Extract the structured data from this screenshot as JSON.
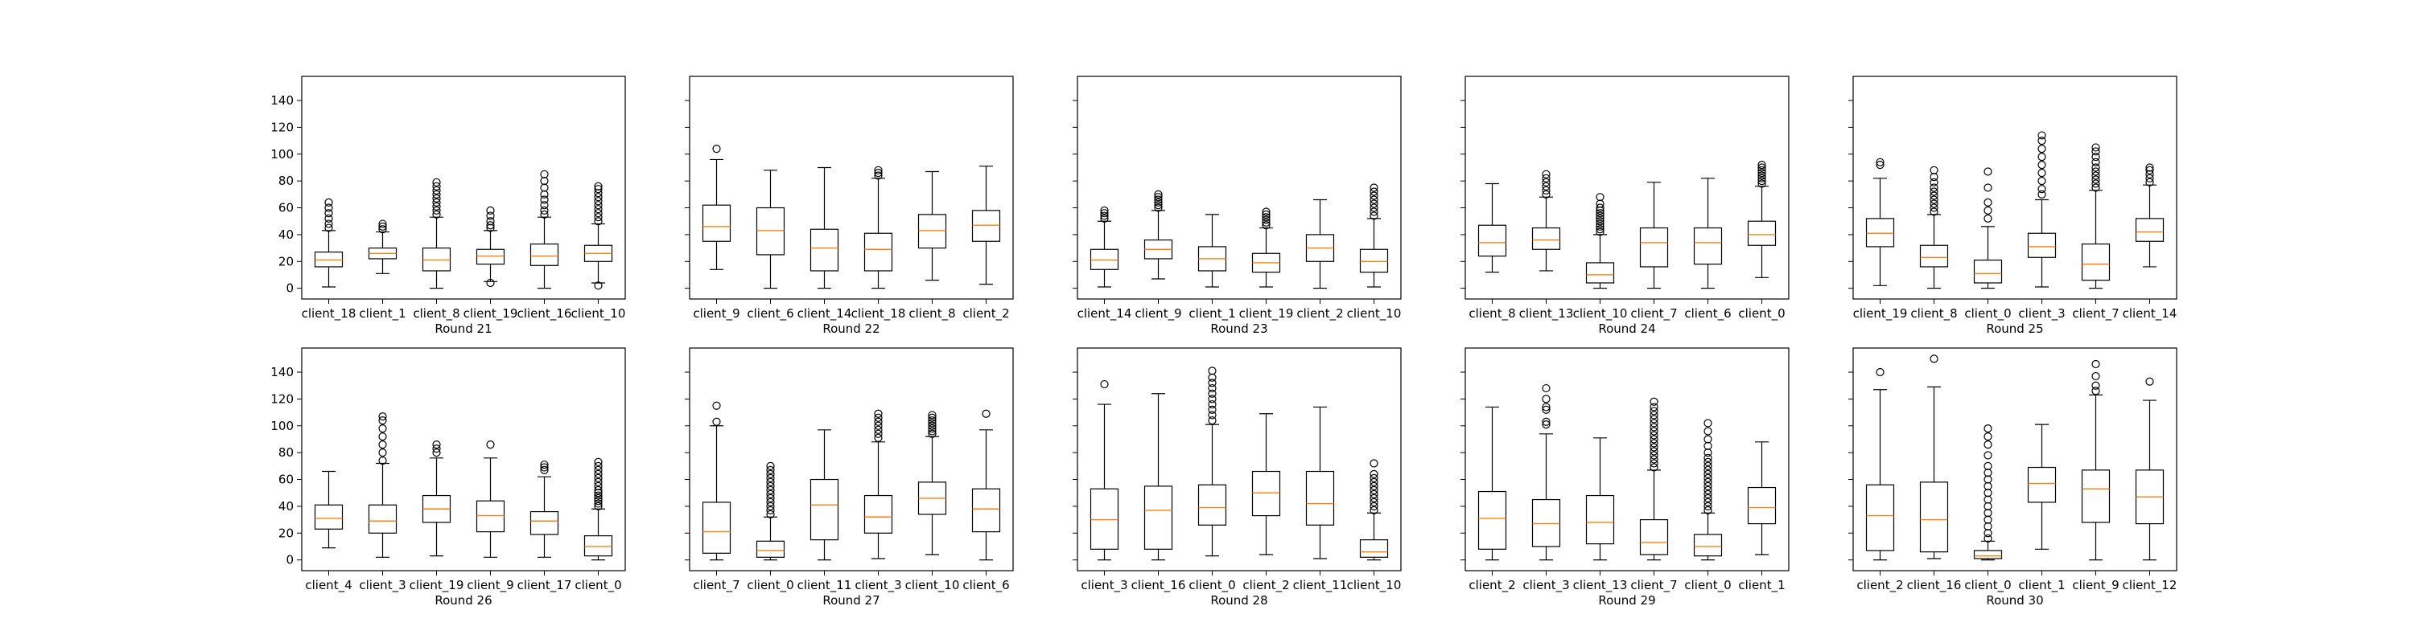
{
  "chart_data": {
    "type": "box",
    "ylim": [
      -8,
      158
    ],
    "yticks": [
      0,
      20,
      40,
      60,
      80,
      100,
      120,
      140
    ],
    "grid": false,
    "panels": [
      {
        "title": "Round 21",
        "clients": [
          {
            "name": "client_18",
            "whislo": 1,
            "q1": 16,
            "med": 21,
            "q3": 27,
            "whishi": 43,
            "fliers": [
              45,
              48,
              52,
              56,
              60,
              64
            ]
          },
          {
            "name": "client_1",
            "whislo": 11,
            "q1": 22,
            "med": 26,
            "q3": 30,
            "whishi": 42,
            "fliers": [
              44,
              46,
              48
            ]
          },
          {
            "name": "client_8",
            "whislo": 0,
            "q1": 13,
            "med": 21,
            "q3": 30,
            "whishi": 53,
            "fliers": [
              55,
              58,
              61,
              64,
              67,
              70,
              73,
              76,
              79
            ]
          },
          {
            "name": "client_19",
            "whislo": 5,
            "q1": 18,
            "med": 24,
            "q3": 29,
            "whishi": 43,
            "fliers": [
              45,
              47,
              50,
              54,
              58,
              4
            ]
          },
          {
            "name": "client_16",
            "whislo": 0,
            "q1": 17,
            "med": 24,
            "q3": 33,
            "whishi": 53,
            "fliers": [
              55,
              58,
              62,
              66,
              70,
              75,
              80,
              85
            ]
          },
          {
            "name": "client_10",
            "whislo": 4,
            "q1": 20,
            "med": 26,
            "q3": 32,
            "whishi": 48,
            "fliers": [
              50,
              53,
              56,
              59,
              62,
              65,
              68,
              71,
              74,
              76,
              2
            ]
          }
        ]
      },
      {
        "title": "Round 22",
        "clients": [
          {
            "name": "client_9",
            "whislo": 14,
            "q1": 35,
            "med": 46,
            "q3": 62,
            "whishi": 96,
            "fliers": [
              104
            ]
          },
          {
            "name": "client_6",
            "whislo": 0,
            "q1": 25,
            "med": 43,
            "q3": 60,
            "whishi": 88,
            "fliers": []
          },
          {
            "name": "client_14",
            "whislo": 0,
            "q1": 13,
            "med": 30,
            "q3": 44,
            "whishi": 90,
            "fliers": []
          },
          {
            "name": "client_18",
            "whislo": 0,
            "q1": 13,
            "med": 29,
            "q3": 41,
            "whishi": 82,
            "fliers": [
              84,
              86,
              88
            ]
          },
          {
            "name": "client_8",
            "whislo": 6,
            "q1": 30,
            "med": 43,
            "q3": 55,
            "whishi": 87,
            "fliers": []
          },
          {
            "name": "client_2",
            "whislo": 3,
            "q1": 35,
            "med": 47,
            "q3": 58,
            "whishi": 91,
            "fliers": []
          }
        ]
      },
      {
        "title": "Round 23",
        "clients": [
          {
            "name": "client_14",
            "whislo": 1,
            "q1": 14,
            "med": 21,
            "q3": 29,
            "whishi": 50,
            "fliers": [
              52,
              54,
              56,
              58
            ]
          },
          {
            "name": "client_9",
            "whislo": 7,
            "q1": 22,
            "med": 29,
            "q3": 36,
            "whishi": 58,
            "fliers": [
              60,
              62,
              64,
              66,
              68,
              70
            ]
          },
          {
            "name": "client_1",
            "whislo": 1,
            "q1": 13,
            "med": 22,
            "q3": 31,
            "whishi": 55,
            "fliers": []
          },
          {
            "name": "client_19",
            "whislo": 1,
            "q1": 12,
            "med": 19,
            "q3": 26,
            "whishi": 45,
            "fliers": [
              47,
              49,
              51,
              53,
              55,
              57
            ]
          },
          {
            "name": "client_2",
            "whislo": 0,
            "q1": 20,
            "med": 30,
            "q3": 40,
            "whishi": 66,
            "fliers": []
          },
          {
            "name": "client_10",
            "whislo": 1,
            "q1": 12,
            "med": 20,
            "q3": 29,
            "whishi": 52,
            "fliers": [
              54,
              57,
              60,
              63,
              66,
              69,
              72,
              75
            ]
          }
        ]
      },
      {
        "title": "Round 24",
        "clients": [
          {
            "name": "client_8",
            "whislo": 12,
            "q1": 24,
            "med": 34,
            "q3": 47,
            "whishi": 78,
            "fliers": []
          },
          {
            "name": "client_13",
            "whislo": 13,
            "q1": 29,
            "med": 36,
            "q3": 45,
            "whishi": 68,
            "fliers": [
              70,
              73,
              76,
              79,
              82,
              85
            ]
          },
          {
            "name": "client_10",
            "whislo": 0,
            "q1": 4,
            "med": 10,
            "q3": 19,
            "whishi": 40,
            "fliers": [
              42,
              44,
              46,
              48,
              50,
              52,
              54,
              56,
              58,
              60,
              63,
              68
            ]
          },
          {
            "name": "client_7",
            "whislo": 0,
            "q1": 16,
            "med": 34,
            "q3": 45,
            "whishi": 79,
            "fliers": []
          },
          {
            "name": "client_6",
            "whislo": 0,
            "q1": 18,
            "med": 34,
            "q3": 45,
            "whishi": 82,
            "fliers": []
          },
          {
            "name": "client_0",
            "whislo": 8,
            "q1": 32,
            "med": 40,
            "q3": 50,
            "whishi": 76,
            "fliers": [
              78,
              80,
              82,
              84,
              86,
              88,
              90,
              92
            ]
          }
        ]
      },
      {
        "title": "Round 25",
        "clients": [
          {
            "name": "client_19",
            "whislo": 2,
            "q1": 31,
            "med": 41,
            "q3": 52,
            "whishi": 82,
            "fliers": [
              92,
              94
            ]
          },
          {
            "name": "client_8",
            "whislo": 0,
            "q1": 16,
            "med": 23,
            "q3": 32,
            "whishi": 55,
            "fliers": [
              57,
              60,
              63,
              66,
              69,
              72,
              75,
              79,
              83,
              88
            ]
          },
          {
            "name": "client_0",
            "whislo": 0,
            "q1": 4,
            "med": 11,
            "q3": 21,
            "whishi": 46,
            "fliers": [
              52,
              58,
              64,
              75,
              87
            ]
          },
          {
            "name": "client_3",
            "whislo": 1,
            "q1": 23,
            "med": 31,
            "q3": 41,
            "whishi": 66,
            "fliers": [
              70,
              74,
              80,
              86,
              92,
              98,
              104,
              110,
              114
            ]
          },
          {
            "name": "client_7",
            "whislo": 0,
            "q1": 6,
            "med": 18,
            "q3": 33,
            "whishi": 73,
            "fliers": [
              75,
              78,
              81,
              84,
              87,
              90,
              94,
              98,
              102,
              105
            ]
          },
          {
            "name": "client_14",
            "whislo": 16,
            "q1": 35,
            "med": 42,
            "q3": 52,
            "whishi": 77,
            "fliers": [
              79,
              82,
              85,
              88,
              90
            ]
          }
        ]
      },
      {
        "title": "Round 26",
        "clients": [
          {
            "name": "client_4",
            "whislo": 9,
            "q1": 23,
            "med": 31,
            "q3": 41,
            "whishi": 66,
            "fliers": []
          },
          {
            "name": "client_3",
            "whislo": 2,
            "q1": 20,
            "med": 29,
            "q3": 41,
            "whishi": 72,
            "fliers": [
              74,
              80,
              86,
              92,
              98,
              104,
              107
            ]
          },
          {
            "name": "client_19",
            "whislo": 3,
            "q1": 28,
            "med": 38,
            "q3": 48,
            "whishi": 76,
            "fliers": [
              80,
              83,
              86
            ]
          },
          {
            "name": "client_9",
            "whislo": 2,
            "q1": 21,
            "med": 33,
            "q3": 44,
            "whishi": 76,
            "fliers": [
              86
            ]
          },
          {
            "name": "client_17",
            "whislo": 2,
            "q1": 19,
            "med": 29,
            "q3": 36,
            "whishi": 62,
            "fliers": [
              67,
              69,
              71
            ]
          },
          {
            "name": "client_0",
            "whislo": 0,
            "q1": 3,
            "med": 10,
            "q3": 18,
            "whishi": 38,
            "fliers": [
              40,
              42,
              44,
              46,
              48,
              50,
              52,
              55,
              58,
              61,
              64,
              67,
              70,
              73
            ]
          }
        ]
      },
      {
        "title": "Round 27",
        "clients": [
          {
            "name": "client_7",
            "whislo": 0,
            "q1": 5,
            "med": 21,
            "q3": 43,
            "whishi": 100,
            "fliers": [
              103,
              115
            ]
          },
          {
            "name": "client_0",
            "whislo": 0,
            "q1": 2,
            "med": 7,
            "q3": 14,
            "whishi": 32,
            "fliers": [
              34,
              37,
              40,
              43,
              46,
              49,
              52,
              55,
              58,
              61,
              64,
              67,
              70
            ]
          },
          {
            "name": "client_11",
            "whislo": 0,
            "q1": 15,
            "med": 41,
            "q3": 60,
            "whishi": 97,
            "fliers": []
          },
          {
            "name": "client_3",
            "whislo": 1,
            "q1": 20,
            "med": 32,
            "q3": 48,
            "whishi": 88,
            "fliers": [
              91,
              94,
              97,
              100,
              103,
              106,
              109
            ]
          },
          {
            "name": "client_10",
            "whislo": 4,
            "q1": 34,
            "med": 46,
            "q3": 58,
            "whishi": 92,
            "fliers": [
              94,
              96,
              98,
              100,
              102,
              104,
              106,
              108
            ]
          },
          {
            "name": "client_6",
            "whislo": 0,
            "q1": 21,
            "med": 38,
            "q3": 53,
            "whishi": 97,
            "fliers": [
              109
            ]
          }
        ]
      },
      {
        "title": "Round 28",
        "clients": [
          {
            "name": "client_3",
            "whislo": 0,
            "q1": 8,
            "med": 30,
            "q3": 53,
            "whishi": 116,
            "fliers": [
              131
            ]
          },
          {
            "name": "client_16",
            "whislo": 0,
            "q1": 8,
            "med": 37,
            "q3": 55,
            "whishi": 124,
            "fliers": []
          },
          {
            "name": "client_0",
            "whislo": 3,
            "q1": 26,
            "med": 39,
            "q3": 56,
            "whishi": 101,
            "fliers": [
              104,
              108,
              112,
              116,
              120,
              124,
              128,
              132,
              136,
              141
            ]
          },
          {
            "name": "client_2",
            "whislo": 4,
            "q1": 33,
            "med": 50,
            "q3": 66,
            "whishi": 109,
            "fliers": []
          },
          {
            "name": "client_11",
            "whislo": 1,
            "q1": 26,
            "med": 42,
            "q3": 66,
            "whishi": 114,
            "fliers": []
          },
          {
            "name": "client_10",
            "whislo": 0,
            "q1": 2,
            "med": 6,
            "q3": 15,
            "whishi": 35,
            "fliers": [
              37,
              40,
              43,
              46,
              49,
              52,
              55,
              58,
              61,
              64,
              72
            ]
          }
        ]
      },
      {
        "title": "Round 29",
        "clients": [
          {
            "name": "client_2",
            "whislo": 0,
            "q1": 8,
            "med": 31,
            "q3": 51,
            "whishi": 114,
            "fliers": []
          },
          {
            "name": "client_3",
            "whislo": 0,
            "q1": 10,
            "med": 27,
            "q3": 45,
            "whishi": 94,
            "fliers": [
              101,
              103,
              112,
              114,
              120,
              128
            ]
          },
          {
            "name": "client_13",
            "whislo": 0,
            "q1": 12,
            "med": 28,
            "q3": 48,
            "whishi": 91,
            "fliers": []
          },
          {
            "name": "client_7",
            "whislo": 0,
            "q1": 4,
            "med": 13,
            "q3": 30,
            "whishi": 67,
            "fliers": [
              69,
              72,
              75,
              78,
              81,
              84,
              87,
              90,
              93,
              96,
              99,
              102,
              105,
              108,
              111,
              114,
              118
            ]
          },
          {
            "name": "client_0",
            "whislo": 0,
            "q1": 3,
            "med": 10,
            "q3": 19,
            "whishi": 35,
            "fliers": [
              37,
              40,
              43,
              46,
              49,
              52,
              55,
              58,
              61,
              64,
              67,
              70,
              73,
              76,
              80,
              85,
              90,
              96,
              102
            ]
          },
          {
            "name": "client_1",
            "whislo": 4,
            "q1": 27,
            "med": 39,
            "q3": 54,
            "whishi": 88,
            "fliers": []
          }
        ]
      },
      {
        "title": "Round 30",
        "clients": [
          {
            "name": "client_2",
            "whislo": 0,
            "q1": 7,
            "med": 33,
            "q3": 56,
            "whishi": 127,
            "fliers": [
              140
            ]
          },
          {
            "name": "client_16",
            "whislo": 1,
            "q1": 6,
            "med": 30,
            "q3": 58,
            "whishi": 129,
            "fliers": [
              150
            ]
          },
          {
            "name": "client_0",
            "whislo": 0,
            "q1": 1,
            "med": 3,
            "q3": 7,
            "whishi": 14,
            "fliers": [
              16,
              20,
              25,
              30,
              35,
              40,
              45,
              50,
              55,
              60,
              65,
              70,
              78,
              86,
              92,
              98
            ]
          },
          {
            "name": "client_1",
            "whislo": 8,
            "q1": 43,
            "med": 57,
            "q3": 69,
            "whishi": 101,
            "fliers": []
          },
          {
            "name": "client_9",
            "whislo": 0,
            "q1": 28,
            "med": 53,
            "q3": 67,
            "whishi": 123,
            "fliers": [
              126,
              130,
              137,
              146
            ]
          },
          {
            "name": "client_12",
            "whislo": 0,
            "q1": 27,
            "med": 47,
            "q3": 67,
            "whishi": 119,
            "fliers": [
              133
            ]
          }
        ]
      }
    ]
  }
}
